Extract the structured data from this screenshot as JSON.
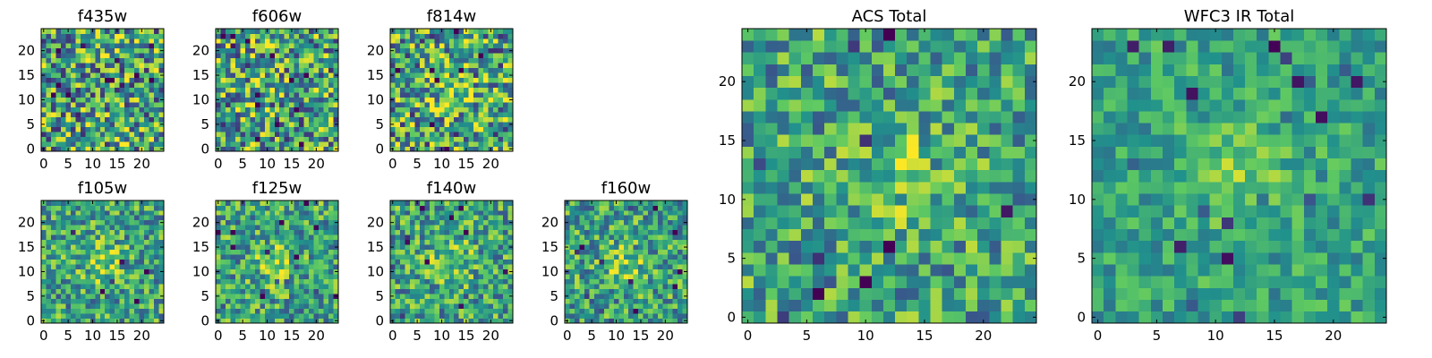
{
  "figure": {
    "colormap": "viridis",
    "colormap_stops": [
      "#440154",
      "#3b528b",
      "#21918c",
      "#5ec962",
      "#fde725"
    ],
    "axis_line_color": "#000000"
  },
  "chart_data": [
    {
      "type": "heatmap",
      "title": "f435w",
      "grid_size": 25,
      "xlim": [
        -0.5,
        24.5
      ],
      "ylim": [
        -0.5,
        24.5
      ],
      "xticks": [
        0,
        5,
        10,
        15,
        20
      ],
      "yticks": [
        0,
        5,
        10,
        15,
        20
      ],
      "central_source": false,
      "noise_level": "high"
    },
    {
      "type": "heatmap",
      "title": "f606w",
      "grid_size": 25,
      "xlim": [
        -0.5,
        24.5
      ],
      "ylim": [
        -0.5,
        24.5
      ],
      "xticks": [
        0,
        5,
        10,
        15,
        20
      ],
      "yticks": [
        0,
        5,
        10,
        15,
        20
      ],
      "central_source": false,
      "noise_level": "high"
    },
    {
      "type": "heatmap",
      "title": "f814w",
      "grid_size": 25,
      "xlim": [
        -0.5,
        24.5
      ],
      "ylim": [
        -0.5,
        24.5
      ],
      "xticks": [
        0,
        5,
        10,
        15,
        20
      ],
      "yticks": [
        0,
        5,
        10,
        15,
        20
      ],
      "central_source": true,
      "noise_level": "high"
    },
    {
      "type": "heatmap",
      "title": "f105w",
      "grid_size": 25,
      "xlim": [
        -0.5,
        24.5
      ],
      "ylim": [
        -0.5,
        24.5
      ],
      "xticks": [
        0,
        5,
        10,
        15,
        20
      ],
      "yticks": [
        0,
        5,
        10,
        15,
        20
      ],
      "central_source": true,
      "noise_level": "medium"
    },
    {
      "type": "heatmap",
      "title": "f125w",
      "grid_size": 25,
      "xlim": [
        -0.5,
        24.5
      ],
      "ylim": [
        -0.5,
        24.5
      ],
      "xticks": [
        0,
        5,
        10,
        15,
        20
      ],
      "yticks": [
        0,
        5,
        10,
        15,
        20
      ],
      "central_source": true,
      "noise_level": "medium"
    },
    {
      "type": "heatmap",
      "title": "f140w",
      "grid_size": 25,
      "xlim": [
        -0.5,
        24.5
      ],
      "ylim": [
        -0.5,
        24.5
      ],
      "xticks": [
        0,
        5,
        10,
        15,
        20
      ],
      "yticks": [
        0,
        5,
        10,
        15,
        20
      ],
      "central_source": true,
      "noise_level": "medium"
    },
    {
      "type": "heatmap",
      "title": "f160w",
      "grid_size": 25,
      "xlim": [
        -0.5,
        24.5
      ],
      "ylim": [
        -0.5,
        24.5
      ],
      "xticks": [
        0,
        5,
        10,
        15,
        20
      ],
      "yticks": [
        0,
        5,
        10,
        15,
        20
      ],
      "central_source": true,
      "noise_level": "medium"
    },
    {
      "type": "heatmap",
      "title": "ACS Total",
      "grid_size": 25,
      "xlim": [
        -0.5,
        24.5
      ],
      "ylim": [
        -0.5,
        24.5
      ],
      "xticks": [
        0,
        5,
        10,
        15,
        20
      ],
      "yticks": [
        0,
        5,
        10,
        15,
        20
      ],
      "central_source": true,
      "noise_level": "medium"
    },
    {
      "type": "heatmap",
      "title": "WFC3 IR Total",
      "grid_size": 25,
      "xlim": [
        -0.5,
        24.5
      ],
      "ylim": [
        -0.5,
        24.5
      ],
      "xticks": [
        0,
        5,
        10,
        15,
        20
      ],
      "yticks": [
        0,
        5,
        10,
        15,
        20
      ],
      "central_source": true,
      "noise_level": "low"
    }
  ]
}
